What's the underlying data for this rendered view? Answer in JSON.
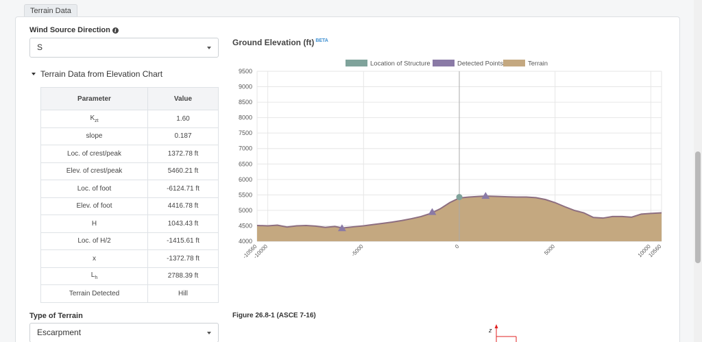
{
  "tab": {
    "label": "Terrain Data"
  },
  "wind": {
    "label": "Wind Source Direction",
    "value": "S"
  },
  "terrain_chart_toggle": {
    "label": "Terrain Data from Elevation Chart"
  },
  "params_table": {
    "headers": [
      "Parameter",
      "Value"
    ],
    "rows": [
      {
        "name": "K",
        "sub": "zt",
        "value": "1.60"
      },
      {
        "name": "slope",
        "sub": "",
        "value": "0.187"
      },
      {
        "name": "Loc. of crest/peak",
        "sub": "",
        "value": "1372.78 ft"
      },
      {
        "name": "Elev. of crest/peak",
        "sub": "",
        "value": "5460.21 ft"
      },
      {
        "name": "Loc. of foot",
        "sub": "",
        "value": "-6124.71 ft"
      },
      {
        "name": "Elev. of foot",
        "sub": "",
        "value": "4416.78 ft"
      },
      {
        "name": "H",
        "sub": "",
        "value": "1043.43 ft"
      },
      {
        "name": "Loc. of H/2",
        "sub": "",
        "value": "-1415.61 ft"
      },
      {
        "name": "x",
        "sub": "",
        "value": "-1372.78 ft"
      },
      {
        "name": "L",
        "sub": "h",
        "value": "2788.39 ft"
      },
      {
        "name": "Terrain Detected",
        "sub": "",
        "value": "Hill"
      }
    ]
  },
  "terrain_type": {
    "label": "Type of Terrain",
    "value": "Escarpment"
  },
  "figure": {
    "caption": "Figure 26.8-1 (ASCE 7-16)",
    "axis_label": "z"
  },
  "chart_title": {
    "text": "Ground Elevation (ft)",
    "badge": "BETA"
  },
  "colors": {
    "structure": "#7fa39b",
    "detected": "#8a7aa6",
    "terrain": "#c4a880",
    "terrain_line": "#8d6e80",
    "grid": "#e6e6e6"
  },
  "chart_data": {
    "type": "area",
    "title": "Ground Elevation (ft)",
    "xlim": [
      -10560,
      10560
    ],
    "ylim": [
      4000,
      9500
    ],
    "x_ticks": [
      -10560,
      -10000,
      -5000,
      0,
      5000,
      10000,
      10560
    ],
    "y_ticks": [
      4000,
      4500,
      5000,
      5500,
      6000,
      6500,
      7000,
      7500,
      8000,
      8500,
      9000,
      9500
    ],
    "legend_position": "top",
    "legend": [
      "Location of Structure",
      "Detected Points",
      "Terrain"
    ],
    "series": [
      {
        "name": "Terrain",
        "x": [
          -10560,
          -10000,
          -9500,
          -9000,
          -8500,
          -8000,
          -7500,
          -7000,
          -6500,
          -6100,
          -5500,
          -5000,
          -4500,
          -4000,
          -3500,
          -3000,
          -2500,
          -2000,
          -1500,
          -1000,
          -500,
          0,
          500,
          1000,
          1400,
          2000,
          2500,
          3000,
          3500,
          4000,
          4500,
          5000,
          5500,
          6000,
          6500,
          7000,
          7500,
          8000,
          8500,
          9000,
          9500,
          10000,
          10560
        ],
        "y": [
          4510,
          4500,
          4520,
          4460,
          4500,
          4510,
          4490,
          4450,
          4480,
          4430,
          4470,
          4500,
          4540,
          4580,
          4620,
          4670,
          4730,
          4800,
          4900,
          5050,
          5250,
          5400,
          5430,
          5450,
          5460,
          5450,
          5440,
          5430,
          5430,
          5410,
          5350,
          5250,
          5120,
          5000,
          4920,
          4770,
          4750,
          4800,
          4800,
          4780,
          4880,
          4900,
          4920
        ]
      },
      {
        "name": "Location of Structure",
        "x": [
          0
        ],
        "y": [
          5430
        ]
      },
      {
        "name": "Detected Points",
        "x": [
          -6125,
          -1416,
          1373
        ],
        "y": [
          4417,
          4940,
          5460
        ]
      }
    ]
  }
}
